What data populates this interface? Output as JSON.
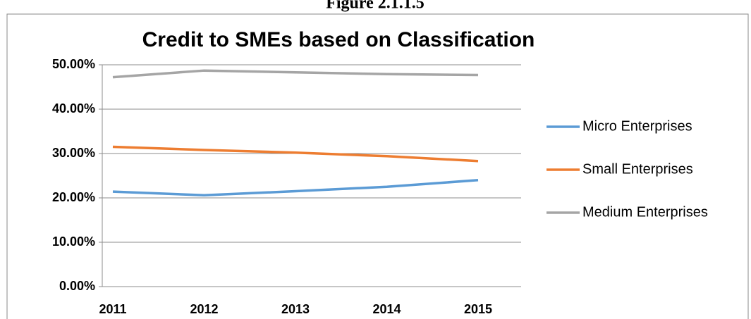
{
  "caption": "Figure 2.1.1.5",
  "chart_data": {
    "type": "line",
    "title": "Credit to SMEs based on Classification",
    "categories": [
      "2011",
      "2012",
      "2013",
      "2014",
      "2015"
    ],
    "series": [
      {
        "name": "Micro Enterprises",
        "color": "#5b9bd5",
        "values": [
          21.4,
          20.6,
          21.5,
          22.5,
          24.0
        ]
      },
      {
        "name": "Small Enterprises",
        "color": "#ed7d31",
        "values": [
          31.5,
          30.8,
          30.2,
          29.4,
          28.3
        ]
      },
      {
        "name": "Medium Enterprises",
        "color": "#a5a5a5",
        "values": [
          47.2,
          48.7,
          48.3,
          47.9,
          47.7
        ]
      }
    ],
    "ylim": [
      0,
      50
    ],
    "yticks": [
      {
        "value": 0,
        "label": "0.00%"
      },
      {
        "value": 10,
        "label": "10.00%"
      },
      {
        "value": 20,
        "label": "20.00%"
      },
      {
        "value": 30,
        "label": "30.00%"
      },
      {
        "value": 40,
        "label": "40.00%"
      },
      {
        "value": 50,
        "label": "50.00%"
      }
    ],
    "grid": true,
    "legend": "right"
  }
}
